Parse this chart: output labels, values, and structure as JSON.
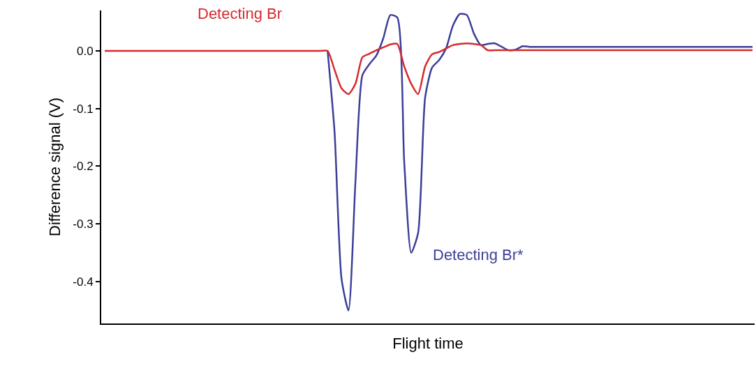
{
  "chart_data": {
    "type": "line",
    "xlabel": "Flight time",
    "ylabel": "Difference signal (V)",
    "categories": [
      null,
      null,
      null,
      null,
      null,
      null,
      null,
      null,
      null,
      null,
      null,
      null,
      null,
      null,
      null,
      null,
      null,
      null,
      null,
      null,
      null,
      null,
      null,
      null,
      null,
      null,
      null,
      null,
      null,
      null,
      null,
      null,
      null,
      null,
      null,
      null,
      null,
      null,
      null,
      null,
      null,
      null,
      null,
      null,
      null,
      null,
      null,
      null,
      null,
      null,
      null,
      null,
      null,
      null,
      null,
      null,
      null,
      null,
      null,
      null,
      null,
      null,
      null,
      null,
      null,
      null,
      null,
      null,
      null,
      null,
      null,
      null,
      null,
      null,
      null,
      null,
      null,
      null,
      null,
      null,
      null,
      null,
      null,
      null,
      null,
      null,
      null,
      null,
      null,
      null,
      null,
      null,
      null,
      null
    ],
    "series": [
      {
        "name": "Detecting Br*",
        "color": "#3b3f98",
        "values": [
          null,
          null,
          null,
          null,
          null,
          null,
          null,
          null,
          null,
          null,
          null,
          null,
          null,
          null,
          null,
          null,
          null,
          null,
          null,
          null,
          null,
          null,
          null,
          null,
          null,
          null,
          null,
          null,
          null,
          null,
          null,
          null,
          0,
          -0.141,
          -0.395,
          -0.45,
          -0.226,
          -0.042,
          -0.023,
          -0.008,
          0.022,
          0.062,
          0.058,
          -0.193,
          -0.35,
          -0.315,
          -0.081,
          -0.029,
          -0.016,
          0.004,
          0.044,
          0.064,
          0.062,
          0.03,
          0.01,
          0.012,
          0.013,
          0.007,
          0.001,
          0.002,
          0.008,
          0.007,
          0.007,
          0.007,
          0.007,
          0.007,
          0.007,
          0.007,
          0.007,
          0.007,
          0.007,
          0.007,
          0.007,
          0.007,
          0.007,
          0.007,
          0.007,
          0.007,
          0.007,
          0.007,
          0.007,
          0.007,
          0.007,
          0.007,
          0.007,
          0.007,
          0.007,
          0.007,
          0.007,
          0.007,
          0.007,
          0.007,
          0.007,
          0.007
        ]
      },
      {
        "name": "Detecting Br",
        "color": "#d42a2f",
        "values": [
          0,
          0,
          0,
          0,
          0,
          0,
          0,
          0,
          0,
          0,
          0,
          0,
          0,
          0,
          0,
          0,
          0,
          0,
          0,
          0,
          0,
          0,
          0,
          0,
          0,
          0,
          0,
          0,
          0,
          0,
          0,
          0,
          0,
          -0.033,
          -0.065,
          -0.075,
          -0.057,
          -0.011,
          -0.005,
          0.001,
          0.006,
          0.011,
          0.012,
          -0.027,
          -0.057,
          -0.075,
          -0.027,
          -0.006,
          -0.002,
          0.004,
          0.01,
          0.012,
          0.013,
          0.012,
          0.01,
          0.001,
          0.001,
          0.001,
          0.001,
          0.001,
          0.001,
          0.001,
          0.001,
          0.001,
          0.001,
          0.001,
          0.001,
          0.001,
          0.001,
          0.001,
          0.001,
          0.001,
          0.001,
          0.001,
          0.001,
          0.001,
          0.001,
          0.001,
          0.001,
          0.001,
          0.001,
          0.001,
          0.001,
          0.001,
          0.001,
          0.001,
          0.001,
          0.001,
          0.001,
          0.001,
          0.001,
          0.001,
          0.001,
          0.001
        ]
      }
    ],
    "ylim": [
      -0.4725,
      0.07
    ],
    "yticks": [
      {
        "value": 0,
        "label": "0.0"
      },
      -0.1,
      -0.2,
      -0.3,
      -0.4
    ],
    "tick_labels": "y",
    "legend": false,
    "line_style": "solid"
  }
}
